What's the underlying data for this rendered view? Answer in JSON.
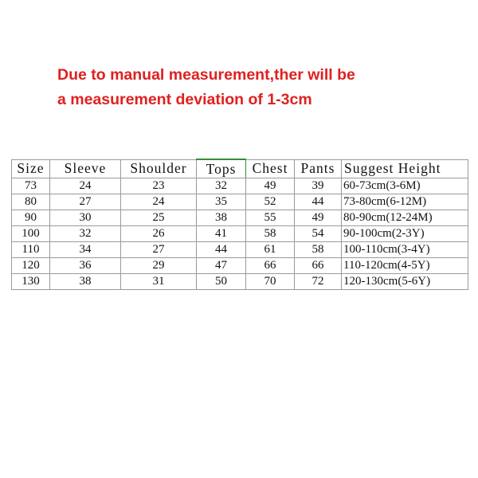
{
  "notice": {
    "line1": "Due to manual measurement,ther will be",
    "line2": "a measurement deviation of 1-3cm",
    "color": "#e02020"
  },
  "table": {
    "headers": [
      "Size",
      "Sleeve",
      "Shoulder",
      "Tops",
      "Chest",
      "Pants",
      "Suggest Height"
    ],
    "rows": [
      [
        "73",
        "24",
        "23",
        "32",
        "49",
        "39",
        "60-73cm(3-6M)"
      ],
      [
        "80",
        "27",
        "24",
        "35",
        "52",
        "44",
        "73-80cm(6-12M)"
      ],
      [
        "90",
        "30",
        "25",
        "38",
        "55",
        "49",
        "80-90cm(12-24M)"
      ],
      [
        "100",
        "32",
        "26",
        "41",
        "58",
        "54",
        "90-100cm(2-3Y)"
      ],
      [
        "110",
        "34",
        "27",
        "44",
        "61",
        "58",
        "100-110cm(3-4Y)"
      ],
      [
        "120",
        "36",
        "29",
        "47",
        "66",
        "66",
        "110-120cm(4-5Y)"
      ],
      [
        "130",
        "38",
        "31",
        "50",
        "70",
        "72",
        "120-130cm(5-6Y)"
      ]
    ]
  }
}
